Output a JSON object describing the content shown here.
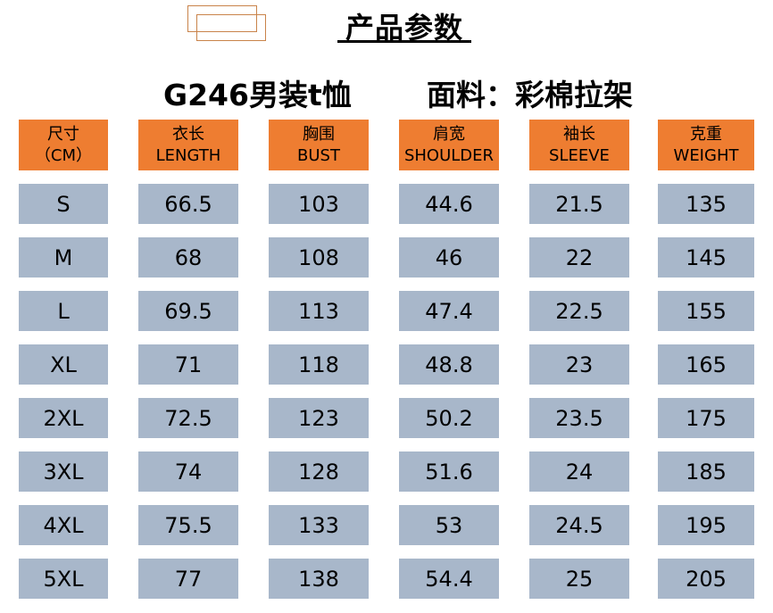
{
  "header": {
    "title": "产品参数",
    "product": "G246男装t恤",
    "fabric": "面料：彩棉拉架"
  },
  "table": {
    "columns": [
      {
        "zh": "尺寸",
        "en": "（CM）"
      },
      {
        "zh": "衣长",
        "en": "LENGTH"
      },
      {
        "zh": "胸围",
        "en": "BUST"
      },
      {
        "zh": "肩宽",
        "en": "SHOULDER"
      },
      {
        "zh": "袖长",
        "en": "SLEEVE"
      },
      {
        "zh": "克重",
        "en": "WEIGHT"
      }
    ],
    "rows": [
      [
        "S",
        "66.5",
        "103",
        "44.6",
        "21.5",
        "135"
      ],
      [
        "M",
        "68",
        "108",
        "46",
        "22",
        "145"
      ],
      [
        "L",
        "69.5",
        "113",
        "47.4",
        "22.5",
        "155"
      ],
      [
        "XL",
        "71",
        "118",
        "48.8",
        "23",
        "165"
      ],
      [
        "2XL",
        "72.5",
        "123",
        "50.2",
        "23.5",
        "175"
      ],
      [
        "3XL",
        "74",
        "128",
        "51.6",
        "24",
        "185"
      ],
      [
        "4XL",
        "75.5",
        "133",
        "53",
        "24.5",
        "195"
      ],
      [
        "5XL",
        "77",
        "138",
        "54.4",
        "25",
        "205"
      ]
    ]
  },
  "colors": {
    "header_bg": "#ee7d31",
    "cell_bg": "#a8b7ca",
    "logo_stroke": "#c9834a"
  }
}
